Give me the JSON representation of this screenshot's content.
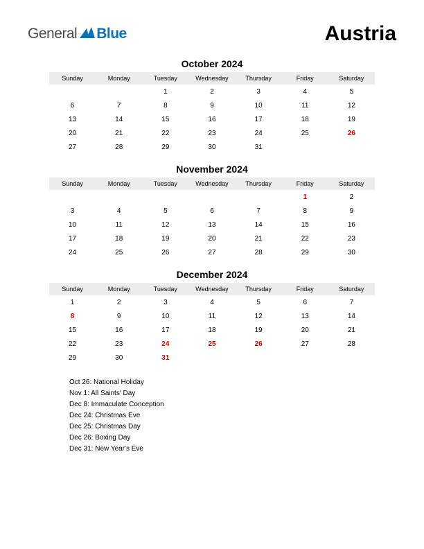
{
  "logo": {
    "part1": "General",
    "part2": "Blue"
  },
  "country": "Austria",
  "day_headers": [
    "Sunday",
    "Monday",
    "Tuesday",
    "Wednesday",
    "Thursday",
    "Friday",
    "Saturday"
  ],
  "colors": {
    "background": "#ffffff",
    "text": "#000000",
    "header_bg": "#ececec",
    "holiday": "#d40000",
    "logo_gray": "#4a4a4a",
    "logo_blue": "#0a73b7"
  },
  "months": [
    {
      "title": "October 2024",
      "weeks": [
        [
          "",
          "",
          "1",
          "2",
          "3",
          "4",
          "5"
        ],
        [
          "6",
          "7",
          "8",
          "9",
          "10",
          "11",
          "12"
        ],
        [
          "13",
          "14",
          "15",
          "16",
          "17",
          "18",
          "19"
        ],
        [
          "20",
          "21",
          "22",
          "23",
          "24",
          "25",
          "26"
        ],
        [
          "27",
          "28",
          "29",
          "30",
          "31",
          "",
          ""
        ]
      ],
      "holidays": [
        "26"
      ]
    },
    {
      "title": "November 2024",
      "weeks": [
        [
          "",
          "",
          "",
          "",
          "",
          "1",
          "2"
        ],
        [
          "3",
          "4",
          "5",
          "6",
          "7",
          "8",
          "9"
        ],
        [
          "10",
          "11",
          "12",
          "13",
          "14",
          "15",
          "16"
        ],
        [
          "17",
          "18",
          "19",
          "20",
          "21",
          "22",
          "23"
        ],
        [
          "24",
          "25",
          "26",
          "27",
          "28",
          "29",
          "30"
        ]
      ],
      "holidays": [
        "1"
      ]
    },
    {
      "title": "December 2024",
      "weeks": [
        [
          "1",
          "2",
          "3",
          "4",
          "5",
          "6",
          "7"
        ],
        [
          "8",
          "9",
          "10",
          "11",
          "12",
          "13",
          "14"
        ],
        [
          "15",
          "16",
          "17",
          "18",
          "19",
          "20",
          "21"
        ],
        [
          "22",
          "23",
          "24",
          "25",
          "26",
          "27",
          "28"
        ],
        [
          "29",
          "30",
          "31",
          "",
          "",
          "",
          ""
        ]
      ],
      "holidays": [
        "8",
        "24",
        "25",
        "26",
        "31"
      ]
    }
  ],
  "holiday_list": [
    "Oct 26: National Holiday",
    "Nov 1: All Saints' Day",
    "Dec 8: Immaculate Conception",
    "Dec 24: Christmas Eve",
    "Dec 25: Christmas Day",
    "Dec 26: Boxing Day",
    "Dec 31: New Year's Eve"
  ]
}
